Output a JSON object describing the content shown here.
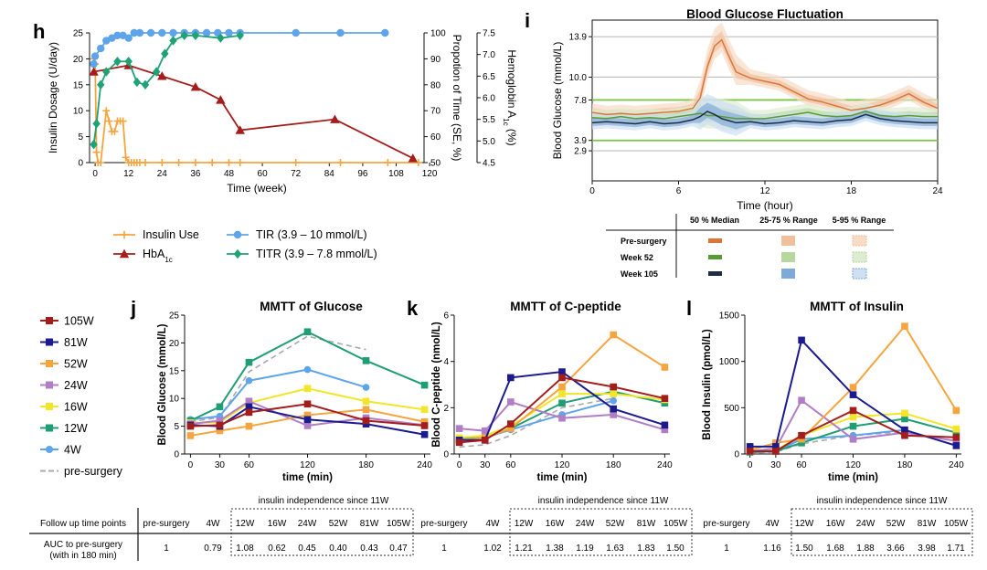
{
  "panels": {
    "h": {
      "letter": "h"
    },
    "i": {
      "letter": "i"
    },
    "j": {
      "letter": "j"
    },
    "k": {
      "letter": "k"
    },
    "l": {
      "letter": "l"
    }
  },
  "chart_data": [
    {
      "id": "h",
      "type": "line",
      "title": "",
      "xlabel": "Time (week)",
      "xlim": [
        -2,
        118
      ],
      "xticks": [
        0,
        12,
        24,
        36,
        48,
        60,
        72,
        84,
        96,
        108,
        120
      ],
      "axes": {
        "left": {
          "label": "Insulin Dosage (U/day)",
          "lim": [
            0,
            25
          ],
          "ticks": [
            0,
            5,
            10,
            15,
            20,
            25
          ]
        },
        "right1": {
          "label": "Propotion of Time (SE, %)",
          "lim": [
            50,
            100
          ],
          "ticks": [
            50,
            60,
            70,
            80,
            90,
            100
          ]
        },
        "right2": {
          "label": "Hemoglobin A1c (%)",
          "label_parts": [
            "Hemoglobin A",
            "1c",
            " (%)"
          ],
          "lim": [
            4.5,
            7.5
          ],
          "ticks": [
            "4.5",
            "5.0",
            "5.5",
            "6.0",
            "6.5",
            "7.0",
            "7.5"
          ]
        }
      },
      "series": [
        {
          "key": "insulin",
          "axis": "left",
          "color": "#f5a540",
          "marker": "plus",
          "x": [
            -0.5,
            0,
            0.5,
            1,
            2,
            4,
            5,
            6,
            7,
            8,
            9,
            10,
            11,
            12,
            13,
            14,
            15,
            16,
            18,
            24,
            30,
            36,
            42,
            48,
            52,
            72,
            88,
            105,
            116
          ],
          "y": [
            20,
            19,
            2,
            0,
            0,
            10,
            8,
            6,
            6,
            8,
            8,
            8,
            1,
            0,
            0,
            0,
            0,
            0,
            0,
            0,
            0,
            0,
            0,
            0,
            0,
            0,
            0,
            0,
            0
          ]
        },
        {
          "key": "tir",
          "axis": "right1",
          "color": "#5ea4ea",
          "marker": "circle",
          "x": [
            -0.5,
            0,
            2,
            4,
            6,
            8,
            10,
            12,
            14,
            16,
            20,
            24,
            28,
            32,
            36,
            40,
            44,
            48,
            52,
            72,
            88,
            104
          ],
          "y": [
            88,
            91,
            94,
            97,
            98,
            99,
            99,
            98,
            100,
            100,
            100,
            100,
            100,
            100,
            100,
            100,
            100,
            100,
            100,
            100,
            100,
            100
          ]
        },
        {
          "key": "hba1c",
          "axis": "right2",
          "color": "#a61b1b",
          "marker": "triangle",
          "x": [
            -0.5,
            12,
            24,
            36,
            45,
            52,
            86,
            114
          ],
          "y": [
            6.6,
            6.75,
            6.5,
            6.25,
            5.95,
            5.25,
            5.5,
            4.6
          ]
        },
        {
          "key": "titr",
          "axis": "right1",
          "color": "#1fa275",
          "marker": "diamond",
          "x": [
            -0.5,
            0.5,
            2,
            4,
            8,
            12,
            15,
            18,
            22,
            25,
            28,
            32,
            36,
            45,
            52
          ],
          "y": [
            57,
            65,
            80,
            85,
            89,
            89,
            81,
            80,
            85,
            92,
            97,
            99,
            99,
            98,
            99
          ]
        }
      ],
      "legend": [
        {
          "series": "insulin",
          "label": "Insulin Use"
        },
        {
          "series": "tir",
          "label": "TIR (3.9 – 10 mmol/L)"
        },
        {
          "series": "hba1c",
          "label": "HbA",
          "sub": "1c"
        },
        {
          "series": "titr",
          "label": "TITR (3.9 – 7.8 mmol/L)"
        }
      ]
    },
    {
      "id": "i",
      "type": "area",
      "title": "Blood Glucose Fluctuation",
      "xlabel": "Time (hour)",
      "ylabel": "Blood Glucose (mmol/L)",
      "xlim": [
        0,
        24
      ],
      "xticks": [
        0,
        6,
        12,
        18,
        24
      ],
      "ylim": [
        0,
        15.5
      ],
      "yticks": [
        "2.9",
        "3.9",
        "7.8",
        "10.0",
        "13.9"
      ],
      "reference_lines": [
        {
          "y": 2.9,
          "color": "#bdbdbd"
        },
        {
          "y": 3.9,
          "color": "#7cc444"
        },
        {
          "y": 7.8,
          "color": "#7cc444"
        },
        {
          "y": 10,
          "color": "#bdbdbd"
        },
        {
          "y": 13.9,
          "color": "#bdbdbd"
        }
      ],
      "x": [
        0,
        1,
        2,
        3,
        4,
        5,
        6,
        7,
        7.5,
        8,
        8.5,
        9,
        9.5,
        10,
        11,
        12,
        13,
        14,
        15,
        16,
        17,
        18,
        19,
        20,
        21,
        22,
        23,
        24
      ],
      "series": [
        {
          "key": "pre",
          "name": "Pre-surgery",
          "median_color": "#d9773a",
          "iqr_color": "#f0c09c",
          "p95_color": "#f7dcc6",
          "y": [
            6.6,
            6.4,
            6.5,
            6.4,
            6.5,
            6.6,
            6.7,
            7.0,
            8.0,
            11.0,
            13.0,
            13.6,
            12.0,
            10.5,
            9.9,
            9.6,
            9.3,
            8.6,
            7.9,
            7.6,
            7.2,
            6.8,
            7.0,
            7.3,
            7.8,
            8.4,
            7.6,
            7.0
          ]
        },
        {
          "key": "w52",
          "name": "Week 52",
          "median_color": "#5a9a33",
          "iqr_color": "#b6d89e",
          "p95_color": "#deedd2",
          "y": [
            6.1,
            6.0,
            6.2,
            6.0,
            6.1,
            6.0,
            6.2,
            6.4,
            6.5,
            6.3,
            6.3,
            6.2,
            6.1,
            6.0,
            6.0,
            6.0,
            6.2,
            6.4,
            6.6,
            6.3,
            6.2,
            6.3,
            6.7,
            6.3,
            6.2,
            6.3,
            6.2,
            6.2
          ]
        },
        {
          "key": "w105",
          "name": "Week 105",
          "median_color": "#1f2d44",
          "iqr_color": "#7fa9d9",
          "p95_color": "#cfe0f2",
          "y": [
            5.6,
            5.7,
            5.6,
            5.5,
            5.7,
            5.5,
            5.6,
            5.9,
            6.2,
            6.7,
            6.4,
            6.0,
            5.8,
            5.6,
            5.7,
            5.5,
            5.6,
            5.8,
            5.7,
            5.6,
            5.8,
            5.9,
            6.4,
            6.0,
            5.8,
            5.7,
            5.6,
            5.6
          ]
        }
      ],
      "legend_table": {
        "headers": [
          "50 % Median",
          "25-75 % Range",
          "5-95 % Range"
        ],
        "rows": [
          "Pre-surgery",
          "Week 52",
          "Week 105"
        ]
      }
    },
    {
      "id": "j",
      "type": "line",
      "title": "MMTT of Glucose",
      "xlabel": "time (min)",
      "ylabel": "Blood Glucose (mmol/L)",
      "xlim": [
        -6,
        246
      ],
      "xticks": [
        0,
        30,
        60,
        120,
        180,
        240
      ],
      "ylim": [
        0,
        25
      ],
      "yticks": [
        0,
        5,
        10,
        15,
        20,
        25
      ],
      "series": [
        {
          "name": "105W",
          "color": "#a31d1d",
          "x": [
            0,
            30,
            60,
            120,
            180,
            240
          ],
          "y": [
            5.0,
            5.2,
            7.5,
            9.0,
            6.0,
            5.1
          ]
        },
        {
          "name": "81W",
          "color": "#1b1b8f",
          "x": [
            0,
            30,
            60,
            120,
            180,
            240
          ],
          "y": [
            5.2,
            5.0,
            8.5,
            6.2,
            5.4,
            3.5
          ]
        },
        {
          "name": "52W",
          "color": "#f5a540",
          "x": [
            0,
            30,
            60,
            120,
            180,
            240
          ],
          "y": [
            3.3,
            4.2,
            5.0,
            7.0,
            8.0,
            5.8
          ]
        },
        {
          "name": "24W",
          "color": "#b07ec6",
          "x": [
            0,
            30,
            60,
            120,
            180,
            240
          ],
          "y": [
            5.4,
            6.0,
            9.5,
            5.1,
            6.5,
            5.2
          ]
        },
        {
          "name": "16W",
          "color": "#f2e52a",
          "x": [
            0,
            30,
            60,
            120,
            180,
            240
          ],
          "y": [
            5.6,
            5.7,
            9.2,
            11.8,
            9.5,
            8.0
          ]
        },
        {
          "name": "12W",
          "color": "#1f9e73",
          "x": [
            0,
            30,
            60,
            120,
            180,
            240
          ],
          "y": [
            6.0,
            8.5,
            16.5,
            22.0,
            16.8,
            12.4
          ]
        },
        {
          "name": "4W",
          "color": "#5ea4ea",
          "x": [
            0,
            30,
            60,
            120,
            180
          ],
          "y": [
            6.2,
            6.8,
            13.2,
            15.2,
            12.0
          ]
        },
        {
          "name": "pre-surgery",
          "color": "#a9a9a9",
          "dashed": true,
          "x": [
            0,
            30,
            60,
            120,
            180
          ],
          "y": [
            5.8,
            6.6,
            14.8,
            21.2,
            18.8
          ]
        }
      ],
      "legend_order": [
        "105W",
        "81W",
        "52W",
        "24W",
        "16W",
        "12W",
        "4W",
        "pre-surgery"
      ]
    },
    {
      "id": "k",
      "type": "line",
      "title": "MMTT of C-peptide",
      "xlabel": "time (min)",
      "ylabel": "Blood C-peptide (nmol/L)",
      "xlim": [
        -6,
        246
      ],
      "xticks": [
        0,
        30,
        60,
        120,
        180,
        240
      ],
      "ylim": [
        0,
        6
      ],
      "yticks": [
        0,
        2,
        4,
        6
      ],
      "series": [
        {
          "name": "105W",
          "color": "#a31d1d",
          "x": [
            0,
            30,
            60,
            120,
            180,
            240
          ],
          "y": [
            0.5,
            0.6,
            1.3,
            3.3,
            2.9,
            2.4
          ]
        },
        {
          "name": "81W",
          "color": "#1b1b8f",
          "x": [
            0,
            30,
            60,
            120,
            180,
            240
          ],
          "y": [
            0.6,
            0.6,
            3.3,
            3.55,
            1.95,
            1.25
          ]
        },
        {
          "name": "52W",
          "color": "#f5a540",
          "x": [
            0,
            30,
            60,
            120,
            180,
            240
          ],
          "y": [
            0.6,
            0.7,
            1.1,
            2.9,
            5.15,
            3.75
          ]
        },
        {
          "name": "24W",
          "color": "#b07ec6",
          "x": [
            0,
            30,
            60,
            120,
            180,
            240
          ],
          "y": [
            1.1,
            1.0,
            2.25,
            1.55,
            1.7,
            1.05
          ]
        },
        {
          "name": "16W",
          "color": "#f2e52a",
          "x": [
            0,
            30,
            60,
            120,
            180,
            240
          ],
          "y": [
            0.7,
            0.8,
            1.2,
            2.6,
            2.6,
            2.35
          ]
        },
        {
          "name": "12W",
          "color": "#1f9e73",
          "x": [
            0,
            30,
            60,
            120,
            180,
            240
          ],
          "y": [
            0.65,
            0.7,
            1.1,
            2.2,
            2.7,
            2.2
          ]
        },
        {
          "name": "4W",
          "color": "#5ea4ea",
          "x": [
            0,
            30,
            60,
            120,
            180
          ],
          "y": [
            0.6,
            0.7,
            1.05,
            1.7,
            2.3
          ]
        },
        {
          "name": "pre-surgery",
          "color": "#a9a9a9",
          "dashed": true,
          "x": [
            0,
            30,
            60,
            120,
            180
          ],
          "y": [
            0.3,
            0.4,
            0.8,
            2.0,
            2.4
          ]
        }
      ]
    },
    {
      "id": "l",
      "type": "line",
      "title": "MMTT of Insulin",
      "xlabel": "time (min)",
      "ylabel": "Blood Insulin (pmol/L)",
      "xlim": [
        -6,
        246
      ],
      "xticks": [
        0,
        30,
        60,
        120,
        180,
        240
      ],
      "ylim": [
        0,
        1500
      ],
      "yticks": [
        0,
        500,
        1000,
        1500
      ],
      "series": [
        {
          "name": "105W",
          "color": "#a31d1d",
          "x": [
            0,
            30,
            60,
            120,
            180,
            240
          ],
          "y": [
            30,
            30,
            200,
            470,
            200,
            180
          ]
        },
        {
          "name": "81W",
          "color": "#1b1b8f",
          "x": [
            0,
            30,
            60,
            120,
            180,
            240
          ],
          "y": [
            80,
            80,
            1230,
            640,
            260,
            90
          ]
        },
        {
          "name": "52W",
          "color": "#f5a540",
          "x": [
            0,
            30,
            60,
            120,
            180,
            240
          ],
          "y": [
            40,
            120,
            160,
            720,
            1380,
            470
          ]
        },
        {
          "name": "24W",
          "color": "#b07ec6",
          "x": [
            0,
            30,
            60,
            120,
            180,
            240
          ],
          "y": [
            30,
            60,
            580,
            160,
            230,
            140
          ]
        },
        {
          "name": "16W",
          "color": "#f2e52a",
          "x": [
            0,
            30,
            60,
            120,
            180,
            240
          ],
          "y": [
            30,
            40,
            200,
            400,
            440,
            270
          ]
        },
        {
          "name": "12W",
          "color": "#1f9e73",
          "x": [
            0,
            30,
            60,
            120,
            180,
            240
          ],
          "y": [
            20,
            30,
            120,
            300,
            380,
            230
          ]
        },
        {
          "name": "4W",
          "color": "#5ea4ea",
          "x": [
            0,
            30,
            60,
            120,
            180
          ],
          "y": [
            20,
            30,
            160,
            200,
            260
          ]
        },
        {
          "name": "pre-surgery",
          "color": "#a9a9a9",
          "dashed": true,
          "x": [
            0,
            30,
            60,
            120,
            180
          ],
          "y": [
            10,
            20,
            110,
            200,
            240
          ]
        }
      ]
    },
    {
      "id": "auc_table",
      "type": "table",
      "row_labels": {
        "timepoints": "Follow up time points",
        "auc1": "AUC to pre-surgery",
        "auc2": "(with in 180 min)"
      },
      "independence_note": "insulin independence since 11W",
      "columns": [
        "pre-surgery",
        "4W",
        "12W",
        "16W",
        "24W",
        "52W",
        "81W",
        "105W"
      ],
      "glucose": [
        "1",
        "0.79",
        "1.08",
        "0.62",
        "0.45",
        "0.40",
        "0.43",
        "0.47"
      ],
      "cpeptide": [
        "1",
        "1.02",
        "1.21",
        "1.38",
        "1.19",
        "1.63",
        "1.83",
        "1.50"
      ],
      "insulin": [
        "1",
        "1.16",
        "1.50",
        "1.68",
        "1.88",
        "3.66",
        "3.98",
        "1.71"
      ]
    }
  ]
}
